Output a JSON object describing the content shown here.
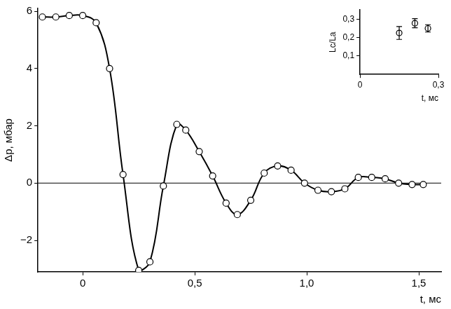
{
  "chart_data": [
    {
      "type": "line",
      "x_label": "t, мс",
      "y_label": "Δp, мбар",
      "x": [
        -0.18,
        -0.12,
        -0.06,
        0.0,
        0.06,
        0.12,
        0.18,
        0.25,
        0.3,
        0.36,
        0.42,
        0.46,
        0.52,
        0.58,
        0.64,
        0.69,
        0.75,
        0.81,
        0.87,
        0.93,
        0.99,
        1.05,
        1.11,
        1.17,
        1.23,
        1.29,
        1.35,
        1.41,
        1.47,
        1.52
      ],
      "values": [
        5.8,
        5.8,
        5.85,
        5.85,
        5.6,
        4.0,
        0.3,
        -3.05,
        -2.75,
        -0.1,
        2.05,
        1.85,
        1.1,
        0.25,
        -0.7,
        -1.1,
        -0.6,
        0.35,
        0.6,
        0.45,
        0.0,
        -0.25,
        -0.3,
        -0.2,
        0.2,
        0.2,
        0.15,
        0.0,
        -0.05,
        -0.05
      ],
      "color": "#000000",
      "marker": "circle",
      "line_style": "solid",
      "xlim": [
        -0.2,
        1.6
      ],
      "xticks": [
        0,
        {
          "value": 0.5,
          "label": "0,5"
        },
        {
          "value": 1.0,
          "label": "1,0"
        },
        {
          "value": 1.5,
          "label": "1,5"
        }
      ],
      "ylim": [
        -3.1,
        6.1
      ],
      "yticks": [
        {
          "value": -2,
          "label": "−2"
        },
        0,
        2,
        4,
        6
      ],
      "grid": false
    },
    {
      "type": "scatter",
      "x_label": "t, мс",
      "y_label": "Lc/La",
      "x": [
        0.15,
        0.21,
        0.26
      ],
      "values": [
        0.225,
        0.278,
        0.25
      ],
      "errors": [
        0.035,
        0.025,
        0.02
      ],
      "color": "#000000",
      "marker": "circle",
      "xlim": [
        0,
        0.3
      ],
      "xticks": [
        0,
        {
          "value": 0.3,
          "label": "0,3"
        }
      ],
      "ylim": [
        0,
        0.35
      ],
      "yticks": [
        {
          "value": 0.1,
          "label": "0,1"
        },
        {
          "value": 0.2,
          "label": "0,2"
        },
        {
          "value": 0.3,
          "label": "0,3"
        }
      ],
      "grid": false
    }
  ]
}
